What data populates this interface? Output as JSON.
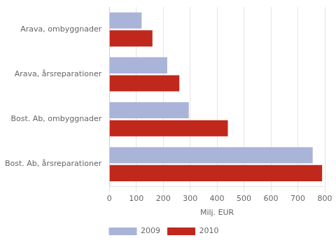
{
  "chart_data": {
    "type": "bar",
    "orientation": "horizontal",
    "categories": [
      "Bost. Ab, årsreparationer",
      "Bost. Ab, ombyggnader",
      "Arava, årsreparationer",
      "Arava, ombyggnader"
    ],
    "series": [
      {
        "name": "2009",
        "color": "#aab4d8",
        "values": [
          755,
          295,
          215,
          120
        ]
      },
      {
        "name": "2010",
        "color": "#c0281c",
        "values": [
          790,
          440,
          260,
          160
        ]
      }
    ],
    "xlabel": "Milj. EUR",
    "xlim": [
      0,
      800
    ],
    "xticks": [
      0,
      100,
      200,
      300,
      400,
      500,
      600,
      700,
      800
    ],
    "grid": true,
    "legend": "bottom"
  }
}
